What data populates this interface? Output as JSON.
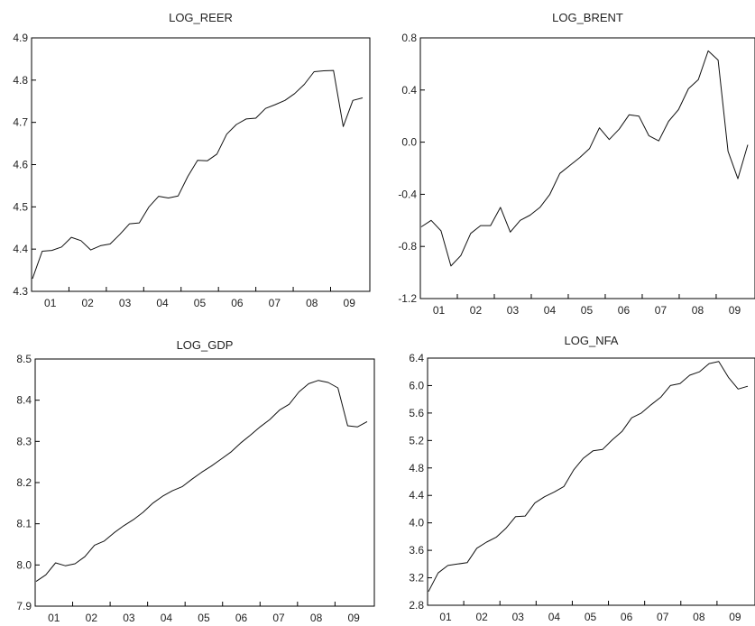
{
  "chart_data": [
    {
      "type": "line",
      "title": "LOG_REER",
      "xlabel": "",
      "ylabel": "",
      "ylim": [
        4.3,
        4.9
      ],
      "y_ticks": [
        "4.3",
        "4.4",
        "4.5",
        "4.6",
        "4.7",
        "4.8",
        "4.9"
      ],
      "x_ticks": [
        "01",
        "02",
        "03",
        "04",
        "05",
        "06",
        "07",
        "08",
        "09"
      ],
      "grid": false,
      "series": [
        {
          "values": [
            4.33,
            4.395,
            4.397,
            4.405,
            4.428,
            4.42,
            4.398,
            4.408,
            4.412,
            4.435,
            4.46,
            4.462,
            4.5,
            4.525,
            4.521,
            4.526,
            4.572,
            4.61,
            4.609,
            4.625,
            4.672,
            4.695,
            4.708,
            4.71,
            4.733,
            4.742,
            4.752,
            4.768,
            4.79,
            4.82,
            4.822,
            4.823,
            4.69,
            4.752,
            4.758
          ]
        }
      ]
    },
    {
      "type": "line",
      "title": "LOG_BRENT",
      "xlabel": "",
      "ylabel": "",
      "ylim": [
        -1.2,
        0.8
      ],
      "y_ticks": [
        "-1.2",
        "-0.8",
        "-0.4",
        "0.0",
        "0.4",
        "0.8"
      ],
      "x_ticks": [
        "01",
        "02",
        "03",
        "04",
        "05",
        "06",
        "07",
        "08",
        "09"
      ],
      "grid": false,
      "series": [
        {
          "values": [
            -0.65,
            -0.6,
            -0.68,
            -0.95,
            -0.87,
            -0.7,
            -0.64,
            -0.64,
            -0.5,
            -0.69,
            -0.6,
            -0.56,
            -0.5,
            -0.4,
            -0.24,
            -0.18,
            -0.12,
            -0.05,
            0.11,
            0.02,
            0.1,
            0.21,
            0.2,
            0.05,
            0.01,
            0.16,
            0.25,
            0.41,
            0.48,
            0.7,
            0.63,
            -0.07,
            -0.28,
            -0.02
          ]
        }
      ]
    },
    {
      "type": "line",
      "title": "LOG_GDP",
      "xlabel": "",
      "ylabel": "",
      "ylim": [
        7.9,
        8.5
      ],
      "y_ticks": [
        "7.9",
        "8.0",
        "8.1",
        "8.2",
        "8.3",
        "8.4",
        "8.5"
      ],
      "x_ticks": [
        "01",
        "02",
        "03",
        "04",
        "05",
        "06",
        "07",
        "08",
        "09"
      ],
      "grid": false,
      "series": [
        {
          "values": [
            7.96,
            7.976,
            8.005,
            7.998,
            8.003,
            8.02,
            8.048,
            8.058,
            8.078,
            8.095,
            8.11,
            8.128,
            8.15,
            8.167,
            8.18,
            8.19,
            8.208,
            8.225,
            8.24,
            8.257,
            8.274,
            8.296,
            8.315,
            8.335,
            8.353,
            8.376,
            8.39,
            8.42,
            8.44,
            8.448,
            8.443,
            8.43,
            8.338,
            8.335,
            8.348
          ]
        }
      ]
    },
    {
      "type": "line",
      "title": "LOG_NFA",
      "xlabel": "",
      "ylabel": "",
      "ylim": [
        2.8,
        6.4
      ],
      "y_ticks": [
        "2.8",
        "3.2",
        "3.6",
        "4.0",
        "4.4",
        "4.8",
        "5.2",
        "5.6",
        "6.0",
        "6.4"
      ],
      "x_ticks": [
        "01",
        "02",
        "03",
        "04",
        "05",
        "06",
        "07",
        "08",
        "09"
      ],
      "grid": false,
      "series": [
        {
          "values": [
            3.0,
            3.27,
            3.38,
            3.4,
            3.42,
            3.63,
            3.72,
            3.79,
            3.92,
            4.09,
            4.1,
            4.29,
            4.38,
            4.45,
            4.53,
            4.77,
            4.94,
            5.05,
            5.07,
            5.21,
            5.33,
            5.53,
            5.6,
            5.72,
            5.83,
            6.0,
            6.03,
            6.15,
            6.2,
            6.32,
            6.35,
            6.12,
            5.95,
            5.99
          ]
        }
      ]
    }
  ]
}
